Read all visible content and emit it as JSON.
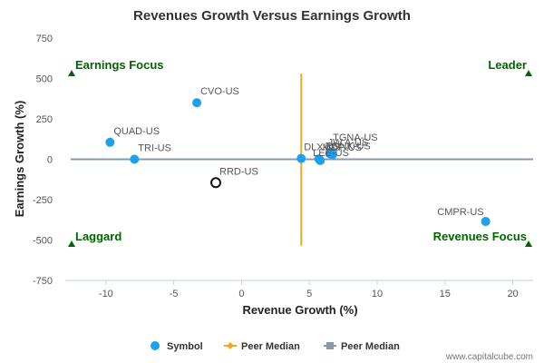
{
  "chart_data": {
    "type": "scatter",
    "title": "Revenues Growth Versus Earnings Growth",
    "xlabel": "Revenue Growth (%)",
    "ylabel": "Earnings Growth (%)",
    "xlim": [
      -13,
      21.5
    ],
    "ylim": [
      -750,
      750
    ],
    "xticks": [
      -10,
      -5,
      0,
      5,
      10,
      15,
      20
    ],
    "yticks": [
      750,
      500,
      250,
      0,
      -250,
      -500,
      -750
    ],
    "grid": false,
    "points": [
      {
        "label": "CVO-US",
        "x": -3.3,
        "y": 350,
        "style": "filled"
      },
      {
        "label": "QUAD-US",
        "x": -9.7,
        "y": 105,
        "style": "filled"
      },
      {
        "label": "TRI-US",
        "x": -7.9,
        "y": 0,
        "style": "filled"
      },
      {
        "label": "RRD-US",
        "x": -1.9,
        "y": -145,
        "style": "hollow"
      },
      {
        "label": "DLX-US",
        "x": 4.4,
        "y": 5,
        "style": "filled"
      },
      {
        "label": "MDP-US",
        "x": 5.7,
        "y": 2,
        "style": "filled"
      },
      {
        "label": "LEE-US",
        "x": 5.8,
        "y": -8,
        "style": "filled"
      },
      {
        "label": "TGNA-US",
        "x": 6.6,
        "y": 42,
        "style": "filled"
      },
      {
        "label": "JW.A-US",
        "x": 6.5,
        "y": 35,
        "style": "filled"
      },
      {
        "label": "RDNK-US",
        "x": 6.7,
        "y": 28,
        "style": "filled"
      },
      {
        "label": "CMPR-US",
        "x": 18.0,
        "y": -385,
        "style": "filled"
      }
    ],
    "peer_median_x": 4.4,
    "peer_median_y": 0,
    "quadrants": {
      "top_left": "Earnings Focus",
      "top_right": "Leader",
      "bottom_left": "Laggard",
      "bottom_right": "Revenues Focus"
    },
    "legend": [
      {
        "name": "Symbol",
        "color": "#1ea0f0"
      },
      {
        "name": "Peer Median",
        "color": "#f5a623"
      },
      {
        "name": "Peer Median",
        "color": "#8a98a8"
      }
    ],
    "legend_position": "bottom",
    "colors": {
      "point": "#1ea0f0",
      "vertical_median": "#f5a623",
      "horizontal_median": "#8a98a8",
      "quadrant": "#006400"
    }
  },
  "credit": "www.capitalcube.com"
}
